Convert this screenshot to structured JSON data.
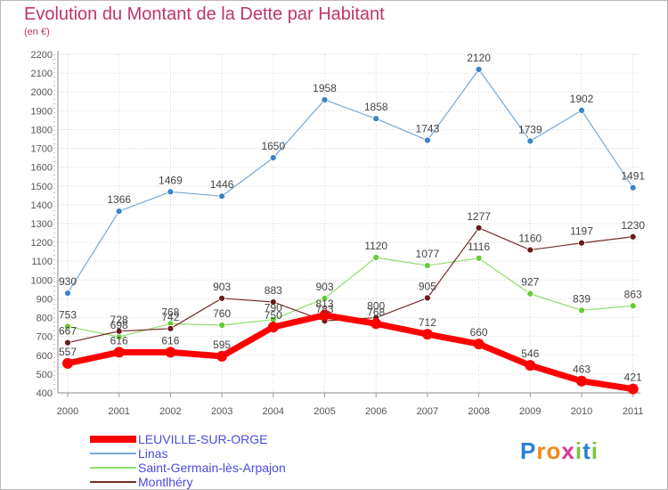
{
  "chart_data": {
    "type": "line",
    "title": "Evolution du Montant de la Dette par Habitant",
    "subtitle": "(en €)",
    "x": [
      "2000",
      "2001",
      "2002",
      "2003",
      "2004",
      "2005",
      "2006",
      "2007",
      "2008",
      "2009",
      "2010",
      "2011"
    ],
    "yticks": [
      400,
      500,
      600,
      700,
      800,
      900,
      1000,
      1100,
      1200,
      1300,
      1400,
      1500,
      1600,
      1700,
      1800,
      1900,
      2000,
      2100,
      2200
    ],
    "ylim": [
      400,
      2200
    ],
    "grid": true,
    "legend_position": "bottom-left",
    "series": [
      {
        "name": "LEUVILLE-SUR-ORGE",
        "color": "#ff0000",
        "values": [
          557,
          616,
          616,
          595,
          750,
          813,
          768,
          712,
          660,
          546,
          463,
          421
        ]
      },
      {
        "name": "Linas",
        "color": "#74a8d4",
        "values": [
          930,
          1366,
          1469,
          1446,
          1650,
          1958,
          1858,
          1743,
          2120,
          1739,
          1902,
          1491
        ]
      },
      {
        "name": "Saint-Germain-lès-Arpajon",
        "color": "#8fdc6a",
        "values": [
          753,
          698,
          768,
          760,
          790,
          903,
          1120,
          1077,
          1116,
          927,
          839,
          863
        ]
      },
      {
        "name": "Montlhéry",
        "color": "#7a2a2a",
        "values": [
          667,
          728,
          742,
          903,
          883,
          783,
          800,
          905,
          1277,
          1160,
          1197,
          1230
        ]
      }
    ]
  },
  "logo": {
    "letters": [
      "P",
      "r",
      "o",
      "x",
      "i",
      "t",
      "i"
    ],
    "colors": [
      "#2a7fd8",
      "#f08a1a",
      "#f08a1a",
      "#d63a9a",
      "#7cc242",
      "#2a7fd8",
      "#7cc242"
    ]
  }
}
